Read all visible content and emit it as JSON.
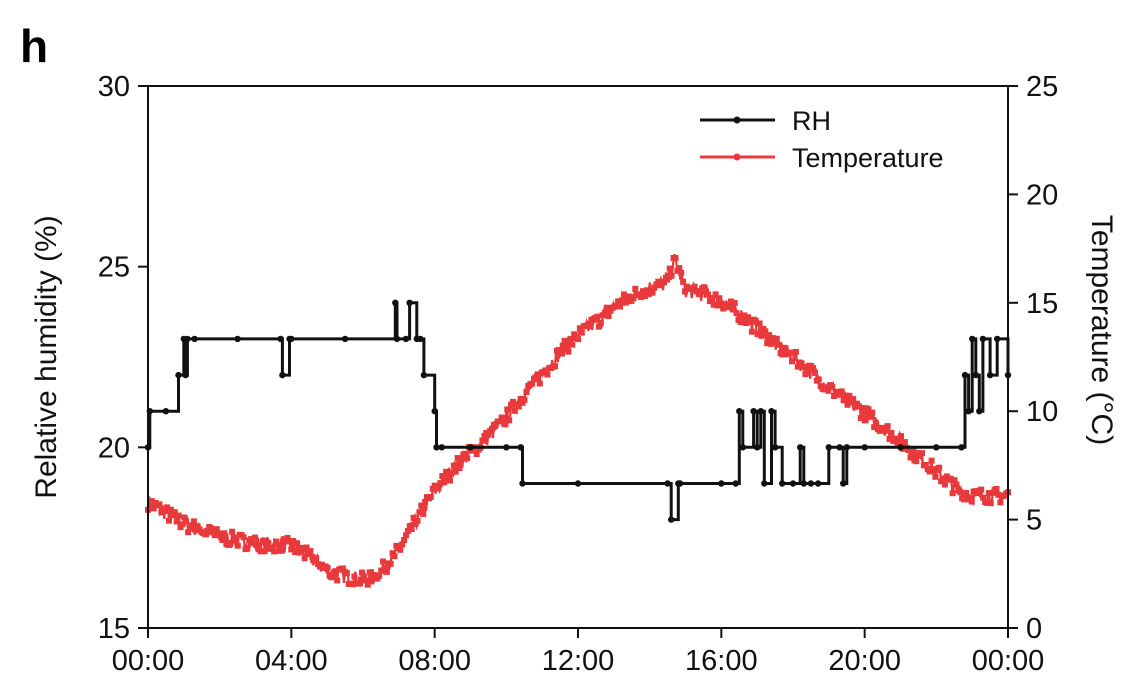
{
  "panel_label": "h",
  "chart_data": {
    "type": "line",
    "x_unit": "time of day",
    "x_ticks": [
      "00:00",
      "04:00",
      "08:00",
      "12:00",
      "16:00",
      "20:00",
      "00:00"
    ],
    "xlim": [
      "00:00",
      "24:00"
    ],
    "y_left": {
      "label": "Relative humidity (%)",
      "ylim": [
        15,
        30
      ],
      "ticks": [
        "15",
        "20",
        "25",
        "30"
      ]
    },
    "y_right": {
      "label": "Temperature (°C)",
      "ylim": [
        0,
        25
      ],
      "ticks": [
        "0",
        "5",
        "10",
        "15",
        "20",
        "25"
      ]
    },
    "legend": {
      "placement": "top-right",
      "entries": [
        "RH",
        "Temperature"
      ]
    },
    "colors": {
      "RH": "#111111",
      "Temperature": "#e8393c"
    },
    "grid": false,
    "series": [
      {
        "name": "RH",
        "axis": "left",
        "style": "step",
        "x_hours": [
          0.0,
          0.05,
          0.5,
          0.85,
          1.0,
          1.05,
          1.1,
          1.3,
          2.5,
          3.7,
          3.75,
          3.95,
          4.0,
          5.5,
          6.9,
          6.95,
          7.2,
          7.3,
          7.5,
          7.6,
          7.7,
          8.0,
          8.05,
          8.2,
          9.0,
          10.0,
          10.4,
          10.45,
          12.0,
          14.5,
          14.6,
          14.8,
          14.85,
          16.0,
          16.4,
          16.5,
          16.6,
          16.9,
          17.0,
          17.1,
          17.2,
          17.4,
          17.5,
          17.7,
          18.0,
          18.2,
          18.3,
          18.5,
          18.7,
          19.0,
          19.3,
          19.4,
          19.5,
          20.0,
          21.0,
          22.0,
          22.7,
          22.8,
          22.9,
          23.0,
          23.1,
          23.2,
          23.3,
          23.5,
          23.7,
          24.0
        ],
        "y": [
          20,
          21,
          21,
          22,
          23,
          22,
          23,
          23,
          23,
          23,
          22,
          23,
          23,
          23,
          24,
          23,
          23,
          24,
          23,
          23,
          22,
          21,
          20,
          20,
          20,
          20,
          20,
          19,
          19,
          19,
          18,
          19,
          19,
          19,
          19,
          21,
          20,
          21,
          20,
          21,
          19,
          21,
          20,
          19,
          19,
          20,
          19,
          19,
          19,
          20,
          20,
          19,
          20,
          20,
          20,
          20,
          20,
          22,
          21,
          23,
          22,
          21,
          23,
          22,
          23,
          22
        ]
      },
      {
        "name": "Temperature",
        "axis": "right",
        "style": "noisy",
        "x_hours": [
          0.0,
          0.5,
          1.0,
          2.0,
          3.0,
          4.0,
          4.5,
          5.0,
          5.5,
          6.0,
          6.5,
          7.0,
          7.5,
          8.0,
          8.5,
          9.0,
          9.5,
          10.0,
          10.5,
          11.0,
          11.5,
          12.0,
          12.5,
          13.0,
          13.5,
          14.0,
          14.5,
          14.7,
          15.0,
          15.5,
          16.0,
          16.5,
          17.0,
          17.5,
          18.0,
          18.5,
          19.0,
          19.5,
          20.0,
          20.5,
          21.0,
          21.5,
          22.0,
          22.5,
          23.0,
          23.5,
          24.0
        ],
        "y": [
          5.8,
          5.3,
          4.8,
          4.2,
          3.9,
          3.8,
          3.3,
          2.6,
          2.4,
          2.2,
          2.6,
          3.6,
          5.0,
          6.3,
          7.3,
          8.1,
          8.8,
          9.7,
          10.8,
          11.7,
          12.7,
          13.5,
          14.1,
          14.8,
          15.3,
          15.7,
          15.9,
          17.0,
          15.6,
          15.4,
          15.1,
          14.5,
          13.8,
          13.1,
          12.5,
          11.8,
          11.1,
          10.5,
          9.9,
          9.3,
          8.6,
          7.9,
          7.2,
          6.5,
          6.1,
          6.1,
          6.1
        ]
      }
    ]
  }
}
